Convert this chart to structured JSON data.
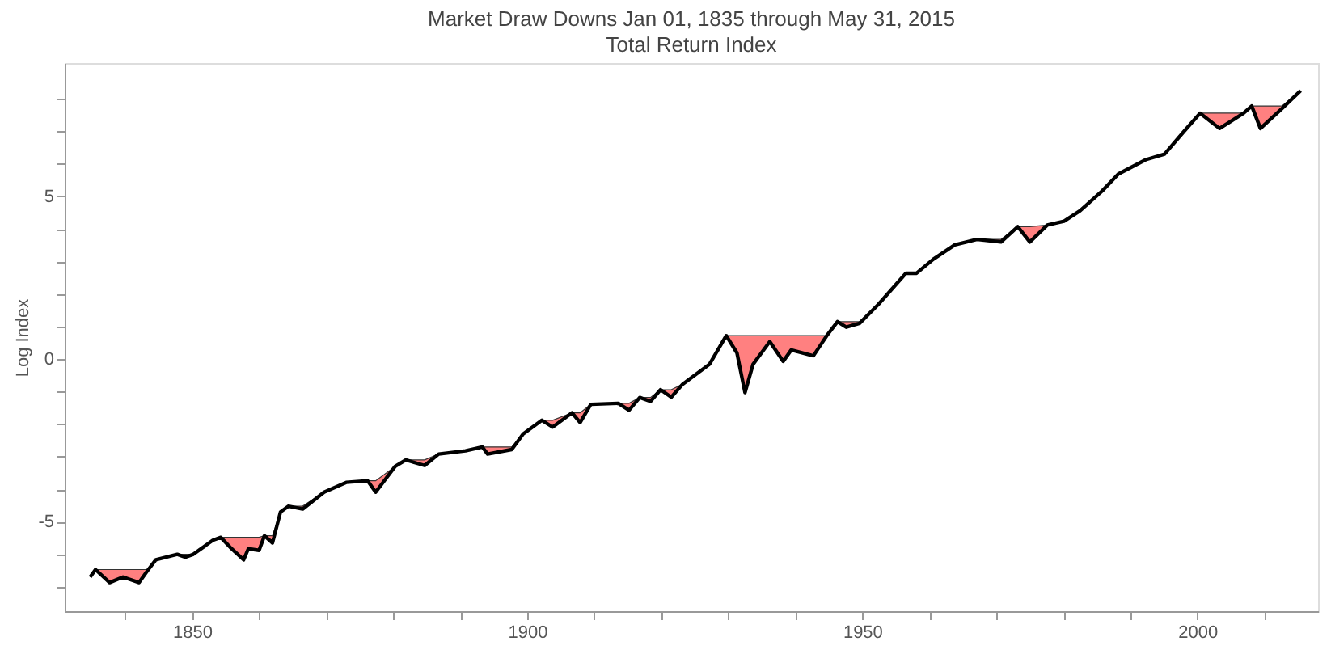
{
  "chart_data": {
    "type": "line",
    "title": "Market Draw Downs Jan 01, 1835 through May 31, 2015",
    "subtitle": "Total Return Index",
    "ylabel": "Log Index",
    "x": [
      1834.8,
      1835.6,
      1837.7,
      1839.7,
      1842.1,
      1843.3,
      1844.6,
      1847.8,
      1849.0,
      1850.2,
      1853.1,
      1854.3,
      1855.9,
      1857.7,
      1858.4,
      1860.0,
      1860.8,
      1862.0,
      1863.2,
      1864.4,
      1866.5,
      1869.7,
      1873.0,
      1876.2,
      1877.4,
      1880.3,
      1881.9,
      1884.7,
      1886.8,
      1890.8,
      1893.3,
      1894.1,
      1897.7,
      1899.4,
      1902.2,
      1903.8,
      1906.7,
      1907.9,
      1909.5,
      1913.6,
      1915.2,
      1916.8,
      1918.4,
      1919.9,
      1921.5,
      1923.2,
      1927.2,
      1929.7,
      1931.3,
      1932.5,
      1933.7,
      1936.2,
      1938.2,
      1939.4,
      1942.7,
      1944.7,
      1946.3,
      1947.6,
      1949.6,
      1952.4,
      1956.5,
      1958.1,
      1960.6,
      1963.8,
      1967.1,
      1970.7,
      1973.2,
      1975.0,
      1977.6,
      1980.1,
      1982.5,
      1985.8,
      1988.2,
      1992.3,
      1995.1,
      1998.0,
      2000.4,
      2003.3,
      2006.9,
      2008.1,
      2009.4,
      2012.6,
      2015.4
    ],
    "series": [
      {
        "color": "#000000",
        "upper": [
          -6.7,
          -6.47,
          -6.47,
          -6.47,
          -6.47,
          -6.47,
          -6.17,
          -6.0,
          -6.0,
          -6.0,
          -5.57,
          -5.48,
          -5.48,
          -5.48,
          -5.48,
          -5.48,
          -5.43,
          -5.43,
          -4.7,
          -4.52,
          -4.52,
          -4.09,
          -3.79,
          -3.74,
          -3.74,
          -3.3,
          -3.1,
          -3.1,
          -2.92,
          -2.82,
          -2.7,
          -2.7,
          -2.7,
          -2.3,
          -1.88,
          -1.88,
          -1.65,
          -1.65,
          -1.39,
          -1.36,
          -1.36,
          -1.18,
          -1.18,
          -0.94,
          -0.94,
          -0.77,
          -0.16,
          0.72,
          0.72,
          0.72,
          0.72,
          0.72,
          0.72,
          0.72,
          0.72,
          0.72,
          1.15,
          1.15,
          1.15,
          1.68,
          2.64,
          2.64,
          3.07,
          3.51,
          3.68,
          3.68,
          4.07,
          4.07,
          4.12,
          4.24,
          4.56,
          5.17,
          5.69,
          6.13,
          6.3,
          7.0,
          7.56,
          7.56,
          7.56,
          7.78,
          7.78,
          7.78,
          8.25
        ],
        "lower": [
          -6.7,
          -6.47,
          -6.87,
          -6.7,
          -6.87,
          -6.52,
          -6.17,
          -6.0,
          -6.09,
          -6.0,
          -5.57,
          -5.48,
          -5.83,
          -6.17,
          -5.83,
          -5.88,
          -5.43,
          -5.65,
          -4.7,
          -4.52,
          -4.61,
          -4.09,
          -3.79,
          -3.74,
          -4.09,
          -3.3,
          -3.1,
          -3.27,
          -2.92,
          -2.82,
          -2.7,
          -2.92,
          -2.78,
          -2.3,
          -1.88,
          -2.09,
          -1.65,
          -1.95,
          -1.39,
          -1.36,
          -1.57,
          -1.18,
          -1.3,
          -0.94,
          -1.17,
          -0.77,
          -0.16,
          0.72,
          0.19,
          -1.03,
          -0.16,
          0.54,
          -0.07,
          0.28,
          0.1,
          0.72,
          1.15,
          0.98,
          1.1,
          1.68,
          2.64,
          2.64,
          3.07,
          3.51,
          3.68,
          3.6,
          4.07,
          3.6,
          4.12,
          4.24,
          4.56,
          5.17,
          5.69,
          6.13,
          6.3,
          7.0,
          7.56,
          7.09,
          7.56,
          7.78,
          7.09,
          7.7,
          8.25
        ],
        "values": [
          -6.7,
          -6.47,
          -6.87,
          -6.7,
          -6.87,
          -6.52,
          -6.17,
          -6.0,
          -6.09,
          -6.0,
          -5.57,
          -5.48,
          -5.83,
          -6.17,
          -5.83,
          -5.88,
          -5.43,
          -5.65,
          -4.7,
          -4.52,
          -4.61,
          -4.09,
          -3.79,
          -3.74,
          -4.09,
          -3.3,
          -3.1,
          -3.27,
          -2.92,
          -2.82,
          -2.7,
          -2.92,
          -2.78,
          -2.3,
          -1.88,
          -2.09,
          -1.65,
          -1.95,
          -1.39,
          -1.36,
          -1.57,
          -1.18,
          -1.3,
          -0.94,
          -1.17,
          -0.77,
          -0.16,
          0.72,
          0.19,
          -1.03,
          -0.16,
          0.54,
          -0.07,
          0.28,
          0.1,
          0.72,
          1.15,
          0.98,
          1.1,
          1.68,
          2.64,
          2.64,
          3.07,
          3.51,
          3.68,
          3.6,
          4.07,
          3.6,
          4.12,
          4.24,
          4.56,
          5.17,
          5.69,
          6.13,
          6.3,
          7.0,
          7.56,
          7.09,
          7.56,
          7.78,
          7.09,
          7.7,
          8.25
        ]
      }
    ],
    "xlim": [
      1831,
      2018
    ],
    "xticks": [
      {
        "value": 1840,
        "label": null
      },
      1850,
      {
        "value": 1860,
        "label": null
      },
      {
        "value": 1870,
        "label": null
      },
      {
        "value": 1880,
        "label": null
      },
      {
        "value": 1890,
        "label": null
      },
      1900,
      {
        "value": 1910,
        "label": null
      },
      {
        "value": 1920,
        "label": null
      },
      {
        "value": 1930,
        "label": null
      },
      {
        "value": 1940,
        "label": null
      },
      1950,
      {
        "value": 1960,
        "label": null
      },
      {
        "value": 1970,
        "label": null
      },
      {
        "value": 1980,
        "label": null
      },
      {
        "value": 1990,
        "label": null
      },
      2000,
      {
        "value": 2010,
        "label": null
      }
    ],
    "ylim": [
      -7.75,
      9.1
    ],
    "yticks": [
      {
        "value": -7,
        "label": null
      },
      {
        "value": -6,
        "label": null
      },
      -5,
      {
        "value": -4,
        "label": null
      },
      {
        "value": -3,
        "label": null
      },
      {
        "value": -2,
        "label": null
      },
      {
        "value": -1,
        "label": null
      },
      0,
      {
        "value": 1,
        "label": null
      },
      {
        "value": 2,
        "label": null
      },
      {
        "value": 3,
        "label": null
      },
      {
        "value": 4,
        "label": null
      },
      5,
      {
        "value": 6,
        "label": null
      },
      {
        "value": 7,
        "label": null
      },
      {
        "value": 8,
        "label": null
      }
    ],
    "grid": false,
    "marker": "none",
    "line_style": "solid"
  }
}
